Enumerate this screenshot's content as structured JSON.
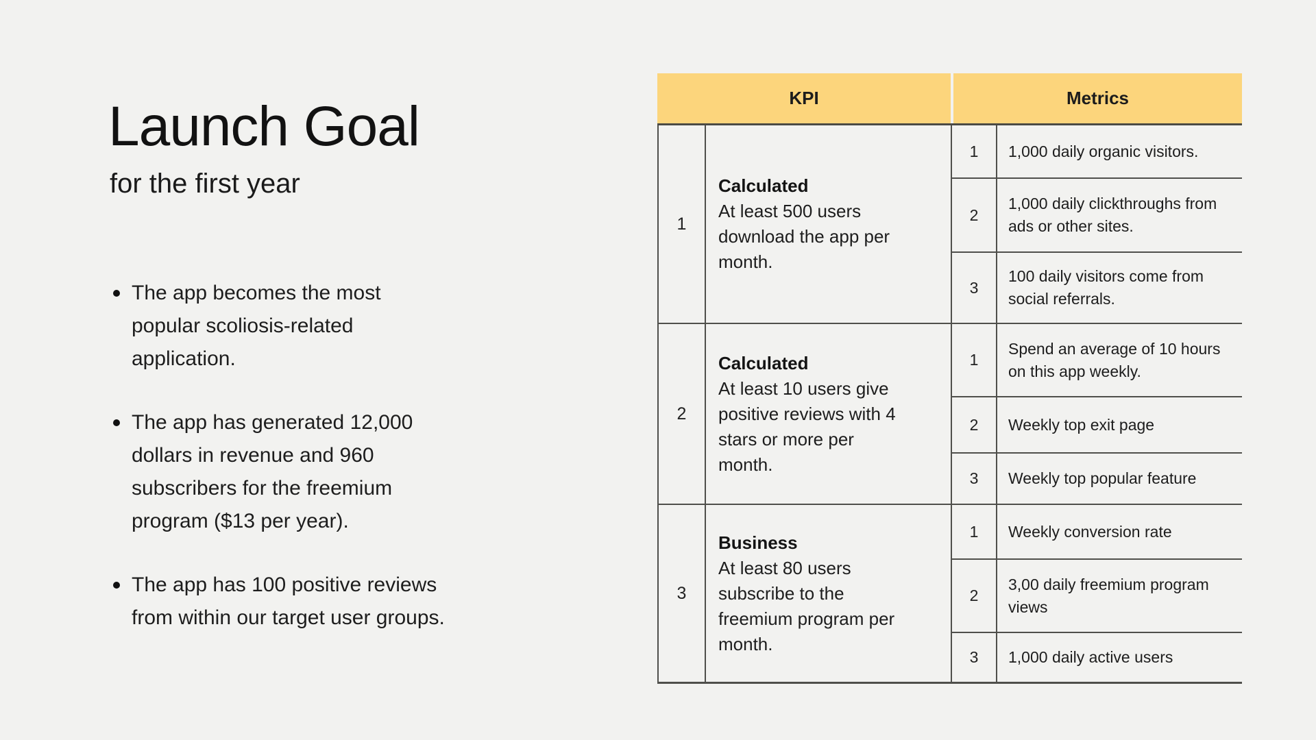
{
  "colors": {
    "background": "#f2f2f0",
    "header_yellow": "#fcd57c",
    "table_border": "#4f4f4b",
    "text": "#161616"
  },
  "left_panel": {
    "title": "Launch Goal",
    "subtitle": "for the first year",
    "bullets": [
      "The app becomes the most popular scoliosis-related application.",
      "The app has generated 12,000 dollars in revenue and 960 subscribers for the freemium program ($13 per year).",
      "The app has 100 positive reviews from within our target user groups."
    ]
  },
  "table": {
    "header": {
      "kpi": "KPI",
      "metrics": "Metrics"
    },
    "rows": [
      {
        "num": "1",
        "label": "Calculated",
        "description": "At least 500 users download the app per month.",
        "metrics": [
          {
            "num": "1",
            "text": "1,000 daily organic visitors."
          },
          {
            "num": "2",
            "text": "1,000 daily clickthroughs from ads or other sites."
          },
          {
            "num": "3",
            "text": "100 daily visitors come from social referrals."
          }
        ]
      },
      {
        "num": "2",
        "label": "Calculated",
        "description": "At least 10 users give positive reviews with 4 stars or more per month.",
        "metrics": [
          {
            "num": "1",
            "text": "Spend an average of 10 hours on this app weekly."
          },
          {
            "num": "2",
            "text": "Weekly top exit page"
          },
          {
            "num": "3",
            "text": "Weekly top popular feature"
          }
        ]
      },
      {
        "num": "3",
        "label": "Business",
        "description": "At least 80 users subscribe to the freemium program per month.",
        "metrics": [
          {
            "num": "1",
            "text": "Weekly conversion rate"
          },
          {
            "num": "2",
            "text": "3,00 daily freemium program views"
          },
          {
            "num": "3",
            "text": "1,000 daily active users"
          }
        ]
      }
    ]
  }
}
